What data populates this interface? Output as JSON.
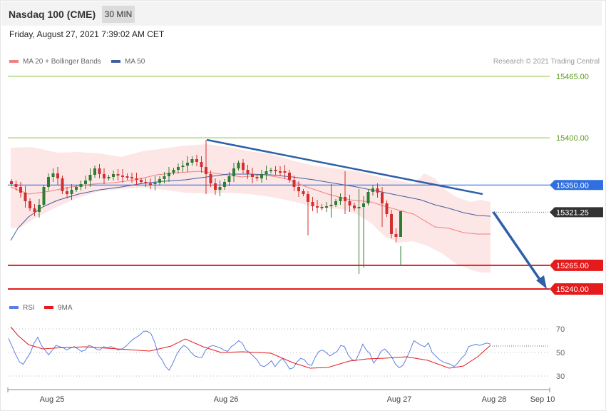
{
  "header": {
    "title": "Nasdaq 100 (CME)",
    "timeframe": "30 MIN",
    "datetime": "Friday, August 27, 2021 7:39:02 AM CET"
  },
  "legend": {
    "ma20_label": "MA 20 + Bollinger Bands",
    "ma50_label": "MA 50",
    "rsi_label": "RSI",
    "rsi_ma_label": "9MA"
  },
  "copyright": "Research © 2021 Trading Central",
  "colors": {
    "resistance": "#8bc34a",
    "pivot": "#2f6fe0",
    "support": "#e41a1c",
    "last": "#333333",
    "bull": "#2e7d32",
    "bear": "#d32f2f",
    "bollinger": "#fde3e3",
    "ma20": "#f08080",
    "ma50": "#3f5fa0",
    "trend": "#2f5fa8",
    "rsi": "#5c7fe0",
    "rsi_ma": "#e41a1c"
  },
  "chart_data": {
    "type": "candlestick",
    "y_range": [
      15225,
      15490
    ],
    "x_ticks": [
      "Aug 25",
      "Aug 26",
      "Aug 27",
      "Aug 28",
      "Sep 10"
    ],
    "levels": [
      {
        "label": "15465.00",
        "value": 15465,
        "kind": "resistance"
      },
      {
        "label": "15400.00",
        "value": 15400,
        "kind": "resistance"
      },
      {
        "label": "15350.00",
        "value": 15350,
        "kind": "pivot"
      },
      {
        "label": "15321.25",
        "value": 15321.25,
        "kind": "last"
      },
      {
        "label": "15265.00",
        "value": 15265,
        "kind": "support"
      },
      {
        "label": "15240.00",
        "value": 15240,
        "kind": "support"
      }
    ],
    "rsi": {
      "ticks": [
        70,
        50,
        30
      ],
      "range": [
        25,
        75
      ]
    }
  }
}
